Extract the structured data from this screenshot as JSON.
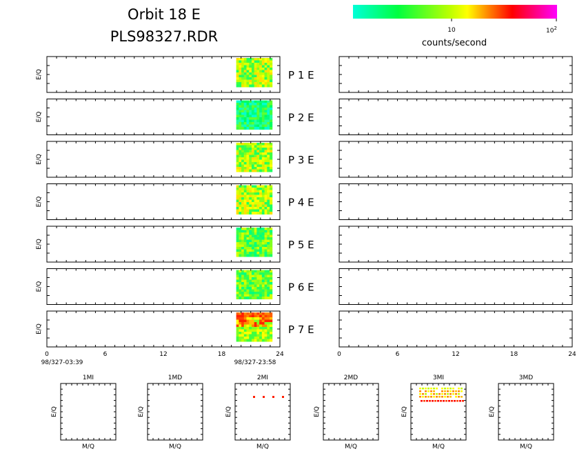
{
  "header": {
    "title": "Orbit 18 E",
    "subtitle": "PLS98327.RDR"
  },
  "colorbar": {
    "label": "counts/second",
    "tick_ten": "10",
    "tick_hundred_base": "10",
    "tick_hundred_exp": "2",
    "colors": [
      "#00ffd8",
      "#00ff40",
      "#c0ff00",
      "#ffff00",
      "#ff8800",
      "#ff0000",
      "#ff00a0",
      "#ff00ff"
    ]
  },
  "left_axis": {
    "ylabel": "E/Q",
    "ticks": [
      "0",
      "6",
      "12",
      "18",
      "24"
    ],
    "start_label": "98/327-03:39",
    "end_label": "98/327-23:58"
  },
  "right_axis": {
    "ticks": [
      "0",
      "6",
      "12",
      "18",
      "24"
    ]
  },
  "panels": [
    {
      "label": "P 1 E",
      "intensity": "mixed"
    },
    {
      "label": "P 2 E",
      "intensity": "low"
    },
    {
      "label": "P 3 E",
      "intensity": "mixed"
    },
    {
      "label": "P 4 E",
      "intensity": "mixed"
    },
    {
      "label": "P 5 E",
      "intensity": "low-mixed"
    },
    {
      "label": "P 6 E",
      "intensity": "low-mixed"
    },
    {
      "label": "P 7 E",
      "intensity": "high"
    }
  ],
  "bottom_plots": [
    {
      "title": "1MI",
      "xlabel": "M/Q",
      "ylabel": "E/Q"
    },
    {
      "title": "1MD",
      "xlabel": "M/Q",
      "ylabel": "E/Q"
    },
    {
      "title": "2MI",
      "xlabel": "M/Q",
      "ylabel": "E/Q"
    },
    {
      "title": "2MD",
      "xlabel": "M/Q",
      "ylabel": "E/Q"
    },
    {
      "title": "3MI",
      "xlabel": "M/Q",
      "ylabel": "E/Q"
    },
    {
      "title": "3MD",
      "xlabel": "M/Q",
      "ylabel": "E/Q"
    }
  ],
  "chart_data": {
    "type": "heatmap",
    "title": "Orbit 18 E",
    "subtitle": "PLS98327.RDR",
    "colorbar_label": "counts/second",
    "colorbar_scale": "log",
    "colorbar_ticks": [
      "10",
      "10^2"
    ],
    "x_axis_label": "",
    "y_axis_label": "E/Q",
    "x_range_hours": [
      0,
      24
    ],
    "x_ticks": [
      0,
      6,
      12,
      18,
      24
    ],
    "time_start": "98/327-03:39",
    "time_end": "98/327-23:58",
    "data_time_range_hours": [
      19.5,
      23.2
    ],
    "right_column_data": "none",
    "panels": [
      "P 1 E",
      "P 2 E",
      "P 3 E",
      "P 4 E",
      "P 5 E",
      "P 6 E",
      "P 7 E"
    ]
  }
}
